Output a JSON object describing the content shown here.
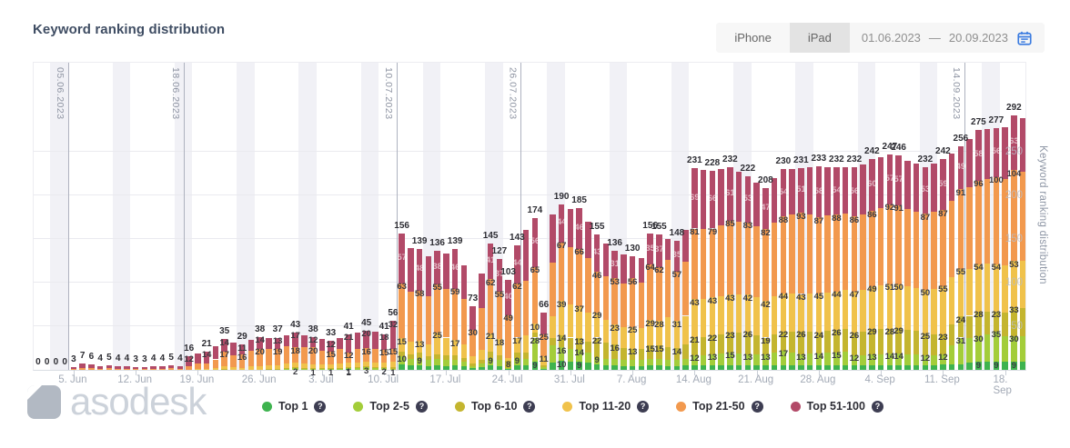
{
  "header": {
    "title": "Keyword ranking distribution",
    "tabs": [
      {
        "label": "iPhone",
        "active": true
      },
      {
        "label": "iPad",
        "active": false
      }
    ],
    "date_range": {
      "start": "01.06.2023",
      "separator": "—",
      "end": "20.09.2023"
    }
  },
  "logo": {
    "text": "asodesk"
  },
  "right_axis_title": "Keyword ranking distribution",
  "legend": {
    "help_glyph": "?",
    "items": [
      {
        "label": "Top 1",
        "color": "#3eb34f"
      },
      {
        "label": "Top 2-5",
        "color": "#a3cd3a"
      },
      {
        "label": "Top 6-10",
        "color": "#c4b52f"
      },
      {
        "label": "Top 11-20",
        "color": "#f0c24b"
      },
      {
        "label": "Top 21-50",
        "color": "#f2994e"
      },
      {
        "label": "Top 51-100",
        "color": "#b24a68"
      }
    ]
  },
  "colors": {
    "accent_blue": "#3d7de0",
    "weekend_stripe": "#f1f1f6",
    "grid_line": "#eaeaef",
    "date_line": "#aeb2bf",
    "axis_text": "#a3aab6",
    "title_text": "#3f4d63"
  },
  "chart_data": {
    "type": "bar",
    "stacked": true,
    "title": "Keyword ranking distribution",
    "xlabel": "",
    "ylabel": "Keyword ranking distribution",
    "date_start": "01.06.2023",
    "date_end": "20.09.2023",
    "ylim": [
      0,
      300
    ],
    "y_ticks": [
      50,
      100,
      150,
      200,
      250
    ],
    "grid": true,
    "legend_position": "bottom",
    "x_tick_labels": [
      "5. Jun",
      "12. Jun",
      "19. Jun",
      "26. Jun",
      "3. Jul",
      "10. Jul",
      "17. Jul",
      "24. Jul",
      "31. Jul",
      "7. Aug",
      "14. Aug",
      "21. Aug",
      "28. Aug",
      "4. Sep",
      "11. Sep",
      "18. Sep"
    ],
    "x_tick_indices": [
      4,
      11,
      18,
      25,
      32,
      39,
      46,
      53,
      60,
      67,
      74,
      81,
      88,
      95,
      102,
      109
    ],
    "gridline_dates": [
      {
        "label": "05.06.2023",
        "index": 4
      },
      {
        "label": "18.06.2023",
        "index": 17
      },
      {
        "label": "10.07.2023",
        "index": 41
      },
      {
        "label": "26.07.2023",
        "index": 55
      },
      {
        "label": "14.09.2023",
        "index": 105
      }
    ],
    "series_names": [
      "Top 1",
      "Top 2-5",
      "Top 6-10",
      "Top 11-20",
      "Top 21-50",
      "Top 51-100"
    ],
    "series_colors": [
      "#3eb34f",
      "#a3cd3a",
      "#c4b52f",
      "#f0c24b",
      "#f2994e",
      "#b24a68"
    ],
    "values": [
      [
        0,
        0,
        0,
        0,
        0,
        0
      ],
      [
        0,
        0,
        0,
        0,
        0,
        0
      ],
      [
        0,
        0,
        0,
        0,
        0,
        0
      ],
      [
        0,
        0,
        0,
        0,
        0,
        0
      ],
      [
        0,
        0,
        0,
        0,
        1,
        2
      ],
      [
        0,
        0,
        0,
        0,
        2,
        5
      ],
      [
        0,
        0,
        0,
        0,
        2,
        4
      ],
      [
        0,
        0,
        0,
        0,
        1,
        3
      ],
      [
        0,
        0,
        0,
        0,
        2,
        3
      ],
      [
        0,
        0,
        0,
        0,
        1,
        3
      ],
      [
        0,
        0,
        0,
        0,
        1,
        3
      ],
      [
        0,
        0,
        0,
        0,
        1,
        2
      ],
      [
        0,
        0,
        0,
        0,
        1,
        2
      ],
      [
        0,
        0,
        0,
        0,
        1,
        3
      ],
      [
        0,
        0,
        0,
        0,
        1,
        3
      ],
      [
        0,
        0,
        0,
        0,
        2,
        3
      ],
      [
        0,
        0,
        0,
        0,
        1,
        3
      ],
      [
        0,
        0,
        0,
        0,
        4,
        12
      ],
      [
        0,
        0,
        0,
        1,
        6,
        12
      ],
      [
        0,
        0,
        0,
        1,
        6,
        14
      ],
      [
        0,
        0,
        0,
        2,
        10,
        15
      ],
      [
        0,
        0,
        1,
        3,
        17,
        14
      ],
      [
        0,
        0,
        0,
        3,
        14,
        14
      ],
      [
        0,
        0,
        0,
        2,
        16,
        11
      ],
      [
        0,
        0,
        0,
        4,
        18,
        12
      ],
      [
        0,
        0,
        0,
        4,
        20,
        14
      ],
      [
        0,
        0,
        1,
        4,
        19,
        13
      ],
      [
        0,
        0,
        1,
        4,
        19,
        13
      ],
      [
        0,
        1,
        1,
        5,
        20,
        13
      ],
      [
        0,
        2,
        1,
        5,
        18,
        17
      ],
      [
        0,
        1,
        1,
        5,
        19,
        14
      ],
      [
        0,
        1,
        1,
        4,
        20,
        12
      ],
      [
        0,
        1,
        1,
        4,
        16,
        13
      ],
      [
        0,
        1,
        1,
        4,
        15,
        12
      ],
      [
        0,
        1,
        1,
        5,
        17,
        13
      ],
      [
        1,
        1,
        1,
        5,
        12,
        21
      ],
      [
        0,
        2,
        1,
        5,
        16,
        19
      ],
      [
        0,
        3,
        1,
        5,
        16,
        20
      ],
      [
        0,
        2,
        1,
        5,
        16,
        20
      ],
      [
        0,
        2,
        1,
        5,
        15,
        18
      ],
      [
        0,
        1,
        2,
        6,
        15,
        32
      ],
      [
        6,
        10,
        5,
        15,
        63,
        57
      ],
      [
        5,
        8,
        5,
        14,
        58,
        50
      ],
      [
        5,
        9,
        6,
        13,
        58,
        48
      ],
      [
        4,
        7,
        5,
        13,
        55,
        46
      ],
      [
        5,
        8,
        5,
        25,
        55,
        38
      ],
      [
        4,
        7,
        6,
        20,
        56,
        40
      ],
      [
        5,
        6,
        6,
        17,
        59,
        46
      ],
      [
        4,
        5,
        5,
        15,
        52,
        39
      ],
      [
        2,
        2,
        3,
        9,
        30,
        27
      ],
      [
        3,
        4,
        4,
        12,
        48,
        39
      ],
      [
        5,
        9,
        7,
        21,
        62,
        41
      ],
      [
        4,
        7,
        6,
        18,
        55,
        37
      ],
      [
        1,
        1,
        8,
        4,
        49,
        40
      ],
      [
        5,
        9,
        6,
        17,
        62,
        44
      ],
      [
        5,
        8,
        7,
        20,
        62,
        58
      ],
      [
        9,
        28,
        6,
        10,
        65,
        56
      ],
      [
        1,
        2,
        2,
        11,
        25,
        25
      ],
      [
        8,
        20,
        8,
        25,
        62,
        55
      ],
      [
        10,
        16,
        14,
        39,
        67,
        44
      ],
      [
        9,
        15,
        13,
        38,
        66,
        43
      ],
      [
        9,
        14,
        13,
        37,
        66,
        46
      ],
      [
        8,
        12,
        12,
        34,
        62,
        42
      ],
      [
        6,
        9,
        22,
        29,
        46,
        43
      ],
      [
        5,
        8,
        18,
        26,
        50,
        38
      ],
      [
        5,
        8,
        16,
        23,
        53,
        31
      ],
      [
        4,
        7,
        14,
        24,
        50,
        33
      ],
      [
        4,
        7,
        13,
        25,
        56,
        25
      ],
      [
        4,
        7,
        13,
        24,
        52,
        28
      ],
      [
        5,
        8,
        15,
        29,
        64,
        35
      ],
      [
        5,
        8,
        15,
        28,
        62,
        37
      ],
      [
        4,
        7,
        15,
        34,
        66,
        24
      ],
      [
        4,
        7,
        14,
        31,
        57,
        35
      ],
      [
        5,
        8,
        16,
        33,
        62,
        36
      ],
      [
        5,
        12,
        21,
        43,
        81,
        69
      ],
      [
        5,
        12,
        21,
        43,
        80,
        68
      ],
      [
        5,
        13,
        22,
        43,
        79,
        66
      ],
      [
        5,
        14,
        22,
        43,
        82,
        64
      ],
      [
        5,
        15,
        23,
        43,
        85,
        61
      ],
      [
        5,
        14,
        24,
        43,
        84,
        57
      ],
      [
        5,
        13,
        26,
        42,
        83,
        53
      ],
      [
        5,
        13,
        22,
        43,
        82,
        50
      ],
      [
        5,
        13,
        19,
        42,
        82,
        47
      ],
      [
        5,
        15,
        21,
        43,
        85,
        51
      ],
      [
        5,
        17,
        22,
        44,
        88,
        54
      ],
      [
        5,
        15,
        24,
        44,
        90,
        52
      ],
      [
        5,
        13,
        26,
        43,
        93,
        51
      ],
      [
        5,
        14,
        25,
        44,
        90,
        54
      ],
      [
        5,
        14,
        24,
        45,
        87,
        58
      ],
      [
        5,
        15,
        25,
        44,
        88,
        55
      ],
      [
        5,
        15,
        26,
        44,
        88,
        54
      ],
      [
        5,
        16,
        26,
        45,
        87,
        53
      ],
      [
        5,
        12,
        26,
        47,
        86,
        56
      ],
      [
        5,
        12,
        27,
        48,
        86,
        57
      ],
      [
        5,
        13,
        29,
        49,
        86,
        60
      ],
      [
        5,
        13,
        29,
        50,
        88,
        59
      ],
      [
        5,
        14,
        28,
        51,
        92,
        57
      ],
      [
        5,
        14,
        29,
        50,
        91,
        57
      ],
      [
        5,
        13,
        28,
        50,
        88,
        56
      ],
      [
        5,
        13,
        27,
        49,
        87,
        55
      ],
      [
        5,
        12,
        25,
        50,
        87,
        53
      ],
      [
        5,
        12,
        24,
        52,
        88,
        55
      ],
      [
        6,
        12,
        23,
        55,
        87,
        59
      ],
      [
        6,
        22,
        24,
        54,
        88,
        54
      ],
      [
        6,
        31,
        24,
        55,
        91,
        49
      ],
      [
        8,
        28,
        26,
        54,
        93,
        56
      ],
      [
        9,
        30,
        28,
        54,
        96,
        58
      ],
      [
        9,
        32,
        26,
        55,
        97,
        57
      ],
      [
        9,
        35,
        23,
        54,
        100,
        56
      ],
      [
        9,
        30,
        27,
        54,
        99,
        59
      ],
      [
        9,
        30,
        33,
        53,
        104,
        63
      ],
      [
        9,
        30,
        32,
        54,
        102,
        62
      ]
    ],
    "labeled_indices": [
      0,
      1,
      2,
      3,
      4,
      5,
      6,
      7,
      8,
      9,
      10,
      11,
      12,
      13,
      14,
      15,
      16,
      17,
      19,
      21,
      23,
      25,
      27,
      29,
      31,
      33,
      35,
      37,
      39,
      40,
      41,
      43,
      45,
      47,
      49,
      51,
      52,
      53,
      54,
      56,
      57,
      59,
      61,
      63,
      65,
      67,
      69,
      70,
      72,
      74,
      76,
      78,
      80,
      82,
      84,
      86,
      88,
      90,
      92,
      94,
      96,
      97,
      100,
      102,
      104,
      106,
      108,
      110
    ]
  }
}
